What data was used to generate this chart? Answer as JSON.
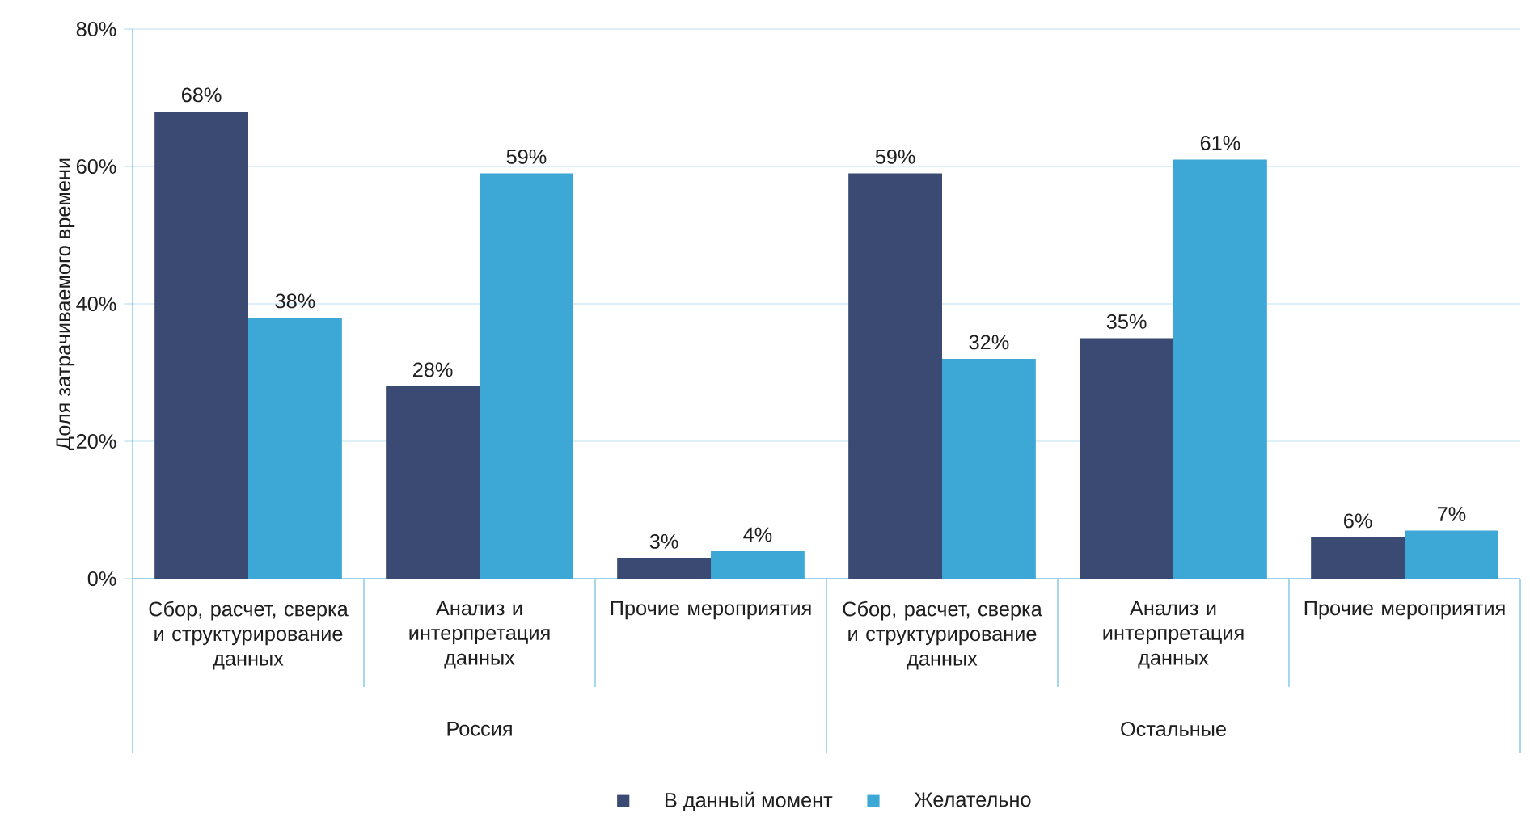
{
  "chart_data": {
    "type": "bar",
    "ylabel": "Доля затрачиваемого времени",
    "categories": [
      "Сбор, расчет, сверка и структурирование данных",
      "Анализ и интерпретация данных",
      "Прочие мероприятия",
      "Сбор, расчет, сверка и структурирование данных",
      "Анализ и интерпретация данных",
      "Прочие мероприятия"
    ],
    "series": [
      {
        "name": "В данный момент",
        "color": "#3b4a72",
        "values": [
          68,
          28,
          3,
          59,
          35,
          6
        ],
        "value_labels": [
          "68%",
          "28%",
          "3%",
          "59%",
          "35%",
          "6%"
        ]
      },
      {
        "name": "Желательно",
        "color": "#3da8d6",
        "values": [
          38,
          59,
          4,
          32,
          61,
          7
        ],
        "value_labels": [
          "38%",
          "59%",
          "4%",
          "32%",
          "61%",
          "7%"
        ]
      }
    ],
    "ylim": [
      0,
      80
    ],
    "yticks": [
      {
        "value": 0,
        "label": "0%"
      },
      {
        "value": 20,
        "label": "20%"
      },
      {
        "value": 40,
        "label": "40%"
      },
      {
        "value": 60,
        "label": "60%"
      },
      {
        "value": 80,
        "label": "80%"
      }
    ],
    "grid": "y",
    "legend": "bottom",
    "annotations": [
      "Россия",
      "Остальные"
    ]
  }
}
